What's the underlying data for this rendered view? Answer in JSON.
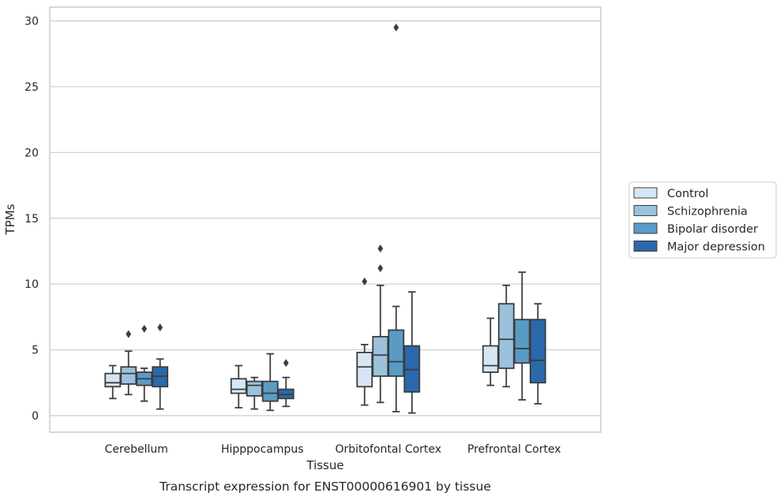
{
  "chart_data": {
    "type": "box",
    "xlabel": "Tissue",
    "ylabel": "TPMs",
    "caption": "Transcript expression for ENST00000616901 by tissue",
    "ylim": [
      -1.2,
      31
    ],
    "yticks": [
      0,
      5,
      10,
      15,
      20,
      25,
      30
    ],
    "grid": true,
    "legend_position": "right",
    "categories": [
      "Cerebellum",
      "Hipppocampus",
      "Orbitofontal Cortex",
      "Prefrontal Cortex"
    ],
    "series": [
      {
        "name": "Control",
        "color": "#d7e6f4",
        "boxes": [
          {
            "whislo": 1.3,
            "q1": 2.2,
            "med": 2.5,
            "q3": 3.2,
            "whishi": 3.8,
            "fliers": []
          },
          {
            "whislo": 0.6,
            "q1": 1.7,
            "med": 2.0,
            "q3": 2.8,
            "whishi": 3.8,
            "fliers": []
          },
          {
            "whislo": 0.8,
            "q1": 2.2,
            "med": 3.7,
            "q3": 4.8,
            "whishi": 5.4,
            "fliers": [
              10.2
            ]
          },
          {
            "whislo": 2.3,
            "q1": 3.3,
            "med": 3.8,
            "q3": 5.3,
            "whishi": 7.4,
            "fliers": []
          }
        ]
      },
      {
        "name": "Schizophrenia",
        "color": "#9ac2dc",
        "boxes": [
          {
            "whislo": 1.6,
            "q1": 2.4,
            "med": 3.2,
            "q3": 3.7,
            "whishi": 4.9,
            "fliers": [
              6.2
            ]
          },
          {
            "whislo": 0.5,
            "q1": 1.5,
            "med": 2.3,
            "q3": 2.6,
            "whishi": 2.9,
            "fliers": []
          },
          {
            "whislo": 1.0,
            "q1": 3.0,
            "med": 4.6,
            "q3": 6.0,
            "whishi": 9.9,
            "fliers": [
              11.2,
              12.7
            ]
          },
          {
            "whislo": 2.2,
            "q1": 3.6,
            "med": 5.8,
            "q3": 8.5,
            "whishi": 9.9,
            "fliers": []
          }
        ]
      },
      {
        "name": "Bipolar disorder",
        "color": "#5a9bc6",
        "boxes": [
          {
            "whislo": 1.1,
            "q1": 2.3,
            "med": 2.8,
            "q3": 3.3,
            "whishi": 3.6,
            "fliers": [
              6.6
            ]
          },
          {
            "whislo": 0.4,
            "q1": 1.1,
            "med": 1.7,
            "q3": 2.6,
            "whishi": 4.7,
            "fliers": []
          },
          {
            "whislo": 0.3,
            "q1": 3.0,
            "med": 4.1,
            "q3": 6.5,
            "whishi": 8.3,
            "fliers": [
              29.5
            ]
          },
          {
            "whislo": 1.2,
            "q1": 4.0,
            "med": 5.1,
            "q3": 7.3,
            "whishi": 10.9,
            "fliers": []
          }
        ]
      },
      {
        "name": "Major depression",
        "color": "#2a69ab",
        "boxes": [
          {
            "whislo": 0.5,
            "q1": 2.2,
            "med": 3.0,
            "q3": 3.7,
            "whishi": 4.3,
            "fliers": [
              6.7
            ]
          },
          {
            "whislo": 0.7,
            "q1": 1.3,
            "med": 1.6,
            "q3": 2.0,
            "whishi": 2.9,
            "fliers": [
              4.0
            ]
          },
          {
            "whislo": 0.2,
            "q1": 1.8,
            "med": 3.5,
            "q3": 5.3,
            "whishi": 9.4,
            "fliers": []
          },
          {
            "whislo": 0.9,
            "q1": 2.5,
            "med": 4.2,
            "q3": 7.3,
            "whishi": 8.5,
            "fliers": []
          }
        ]
      }
    ]
  }
}
